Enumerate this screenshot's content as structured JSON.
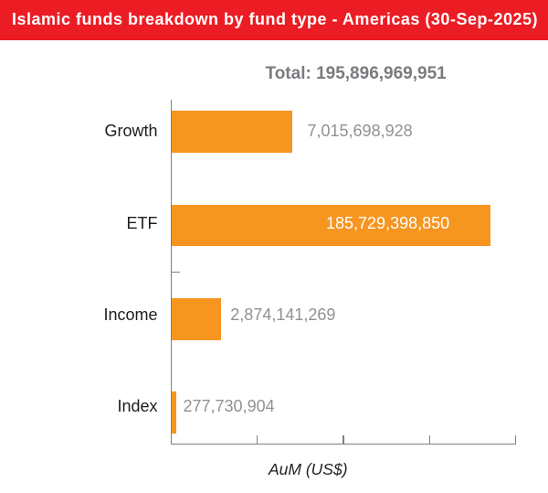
{
  "banner": {
    "title": "Islamic funds breakdown by fund type - Americas (30-Sep-2025)",
    "background_color": "#EC1C24",
    "text_color": "#FFFFFF"
  },
  "total": {
    "text": "Total: 195,896,969,951",
    "color": "#7A7B7F"
  },
  "chart_data": {
    "type": "bar",
    "orientation": "horizontal",
    "title": "Islamic funds breakdown by fund type - Americas (30-Sep-2025)",
    "categories": [
      "Growth",
      "ETF",
      "Income",
      "Index"
    ],
    "values": [
      7015698928,
      185729398850,
      2874141269,
      277730904
    ],
    "value_labels": [
      "7,015,698,928",
      "185,729,398,850",
      "2,874,141,269",
      "277,730,904"
    ],
    "total_value": 195896969951,
    "xlabel": "AuM (US$)",
    "ylabel": "",
    "xlim": [
      0,
      20000000000
    ],
    "xticks": [
      0,
      5000000000,
      10000000000,
      15000000000,
      20000000000
    ],
    "xtick_labels": [
      "",
      "",
      "",
      "",
      ""
    ],
    "grid": false,
    "legend": false,
    "bar_color": "#F6951F",
    "axis_color": "#7F7F7F",
    "category_label_color": "#1C1C1C",
    "value_label_color": "#8F9194",
    "value_label_inside": [
      false,
      true,
      false,
      false
    ],
    "bar_clipped": [
      false,
      true,
      false,
      false
    ],
    "xlabel_color": "#222222"
  }
}
